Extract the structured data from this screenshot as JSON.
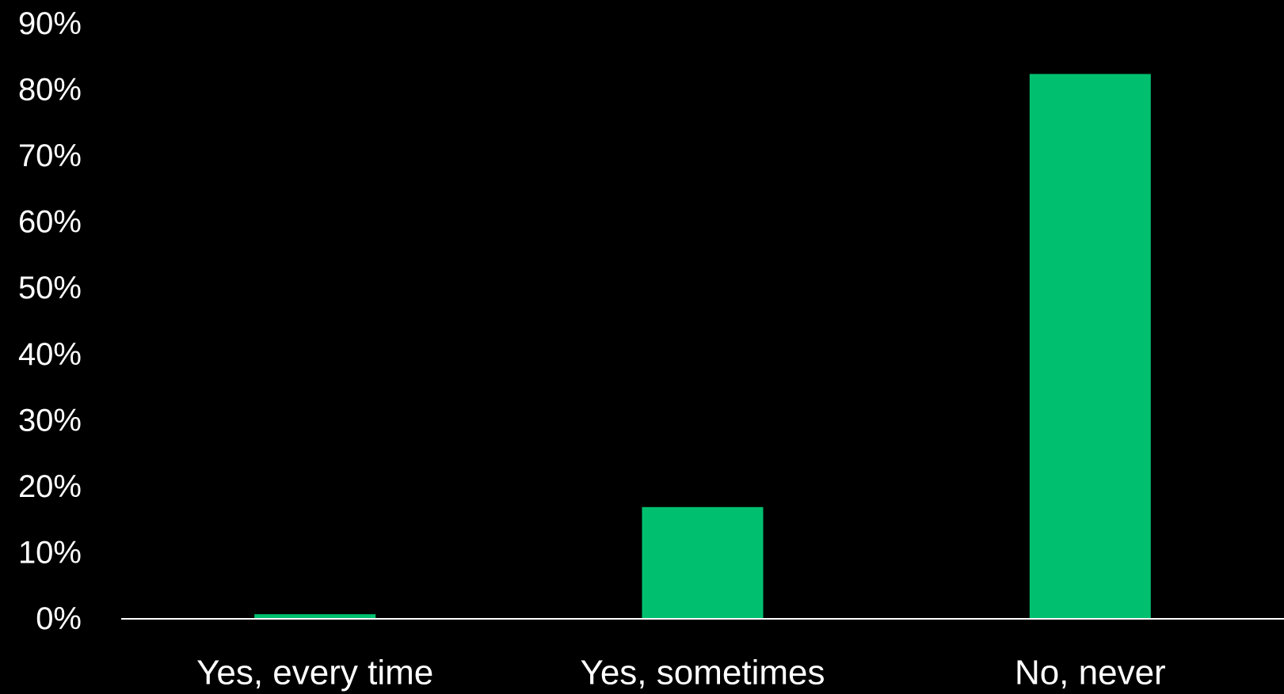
{
  "chart_data": {
    "type": "bar",
    "title": "",
    "xlabel": "",
    "ylabel": "",
    "categories": [
      "Yes, every time",
      "Yes, sometimes",
      "No, never"
    ],
    "series": [
      {
        "values": [
          0.7,
          16.9,
          82.4
        ]
      }
    ],
    "ylim": [
      0,
      90
    ],
    "y_ticks": [
      "0%",
      "10%",
      "20%",
      "30%",
      "40%",
      "50%",
      "60%",
      "70%",
      "80%",
      "90%"
    ],
    "grid": false,
    "legend": "none",
    "colors": {
      "background": "#000000",
      "bar": "#00C070",
      "axis": "#FFFFFF",
      "text": "#FFFFFF"
    }
  }
}
